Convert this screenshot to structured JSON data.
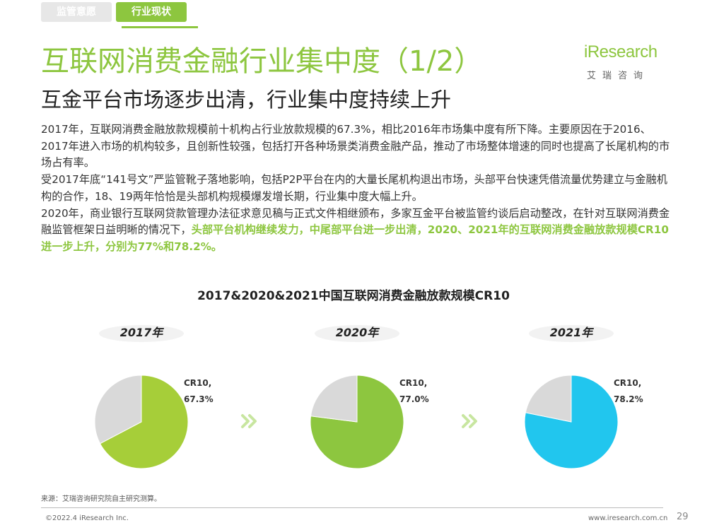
{
  "tabs": [
    {
      "label": "监管意愿",
      "active": false
    },
    {
      "label": "行业现状",
      "active": true
    }
  ],
  "logo": {
    "text": "iResearch",
    "sub": "艾瑞咨询"
  },
  "title": "互联网消费金融行业集中度（1/2）",
  "subtitle": "互金平台市场逐步出清，行业集中度持续上升",
  "paragraphs": {
    "p1": "2017年，互联网消费金融放款规模前十机构占行业放款规模的67.3%，相比2016年市场集中度有所下降。主要原因在于2016、2017年进入市场的机构较多，且创新性较强，包括打开各种场景类消费金融产品，推动了市场整体增速的同时也提高了长尾机构的市场占有率。",
    "p2": "受2017年底“141号文”严监管靴子落地影响，包括P2P平台在内的大量长尾机构退出市场，头部平台快速凭借流量优势建立与金融机构的合作，18、19两年恰恰是头部机构规模爆发增长期，行业集中度大幅上升。",
    "p3_normal": "2020年，商业银行互联网贷款管理办法征求意见稿与正式文件相继颁布，多家互金平台被监管约谈后启动整改，在针对互联网消费金融监管框架日益明晰的情况下，",
    "p3_highlight": "头部平台机构继续发力，中尾部平台进一步出清，2020、2021年的互联网消费金融放款规模CR10进一步上升，分别为77%和78.2%。"
  },
  "chart_data": {
    "type": "pie",
    "title": "2017&2020&2021中国互联网消费金融放款规模CR10",
    "charts": [
      {
        "year": "2017年",
        "label_line1": "CR10,",
        "label_line2": "67.3%",
        "value": 67.3,
        "color": "#a6ce39",
        "rest_color": "#d9d9d9"
      },
      {
        "year": "2020年",
        "label_line1": "CR10,",
        "label_line2": "77.0%",
        "value": 77.0,
        "color": "#8dc63f",
        "rest_color": "#d9d9d9"
      },
      {
        "year": "2021年",
        "label_line1": "CR10,",
        "label_line2": "78.2%",
        "value": 78.2,
        "color": "#21c6ee",
        "rest_color": "#d9d9d9"
      }
    ],
    "arrow_color": "#c8e6a0"
  },
  "source": "来源：艾瑞咨询研究院自主研究测算。",
  "footer": {
    "copyright": "©2022.4 iResearch Inc.",
    "site": "www.iresearch.com.cn",
    "page": "29"
  }
}
